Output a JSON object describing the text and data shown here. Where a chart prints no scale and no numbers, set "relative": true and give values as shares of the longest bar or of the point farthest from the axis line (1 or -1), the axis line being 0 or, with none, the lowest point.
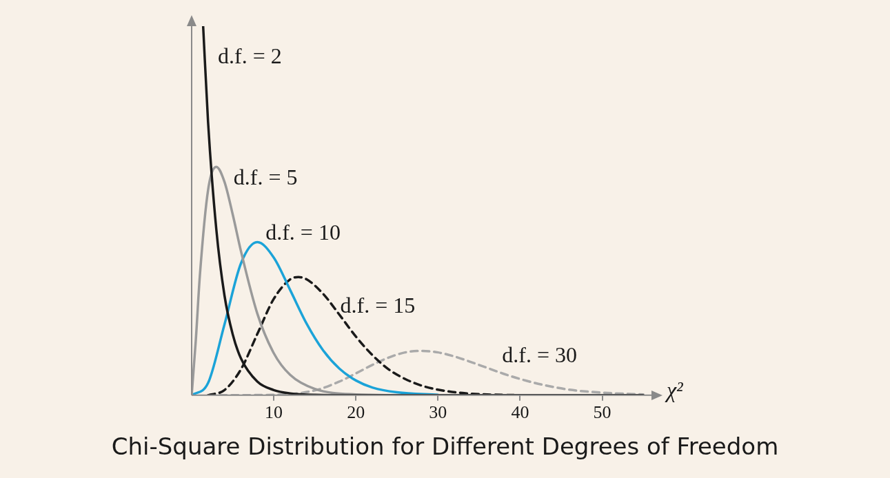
{
  "chart_data": {
    "type": "line",
    "title": "Chi-Square Distribution for Different Degrees of Freedom",
    "xlabel": "χ²",
    "relative": true,
    "xlim": [
      0,
      56
    ],
    "xticks": [
      10,
      20,
      30,
      40,
      50
    ],
    "grid": false,
    "legend": false,
    "marker": "none",
    "series": [
      {
        "name": "d.f. = 2",
        "color": "#1a1a1a",
        "line_style": "solid",
        "x": [
          1.4,
          2,
          3,
          4,
          5,
          6,
          8,
          10,
          12,
          15,
          20,
          55
        ],
        "values": [
          1.0,
          0.74,
          0.45,
          0.27,
          0.165,
          0.1,
          0.037,
          0.014,
          0.005,
          0.001,
          0,
          0
        ]
      },
      {
        "name": "d.f. = 5",
        "color": "#9a9a9a",
        "line_style": "solid",
        "x": [
          0,
          0.5,
          1,
          2,
          3,
          4,
          5,
          6,
          8,
          10,
          12,
          15,
          20,
          25
        ],
        "values": [
          0,
          0.147,
          0.324,
          0.556,
          0.619,
          0.578,
          0.49,
          0.391,
          0.221,
          0.114,
          0.055,
          0.017,
          0.002,
          0
        ]
      },
      {
        "name": "d.f. = 10",
        "color": "#1ba3d8",
        "line_style": "solid",
        "x": [
          0,
          2,
          4,
          6,
          8,
          10,
          12,
          14,
          16,
          18,
          20,
          22,
          25,
          30
        ],
        "values": [
          0,
          0.033,
          0.192,
          0.357,
          0.415,
          0.373,
          0.285,
          0.194,
          0.122,
          0.072,
          0.04,
          0.021,
          0.008,
          0.001
        ]
      },
      {
        "name": "d.f. = 15",
        "color": "#1a1a1a",
        "line_style": "dashed",
        "x": [
          2,
          4,
          6,
          8,
          10,
          12,
          13,
          14,
          16,
          18,
          20,
          22,
          24,
          26,
          28,
          30,
          33,
          36,
          40
        ],
        "values": [
          0,
          0.014,
          0.07,
          0.166,
          0.261,
          0.314,
          0.32,
          0.314,
          0.275,
          0.218,
          0.159,
          0.109,
          0.07,
          0.044,
          0.026,
          0.015,
          0.006,
          0.002,
          0
        ]
      },
      {
        "name": "d.f. = 30",
        "color": "#aaaaaa",
        "line_style": "dashed",
        "x": [
          2,
          10,
          15,
          18,
          20,
          22,
          24,
          26,
          28,
          30,
          32,
          34,
          36,
          38,
          40,
          43,
          46,
          50,
          55
        ],
        "values": [
          0,
          0.001,
          0.013,
          0.037,
          0.059,
          0.082,
          0.102,
          0.116,
          0.12,
          0.116,
          0.105,
          0.09,
          0.074,
          0.058,
          0.044,
          0.027,
          0.015,
          0.007,
          0.002
        ]
      }
    ]
  }
}
